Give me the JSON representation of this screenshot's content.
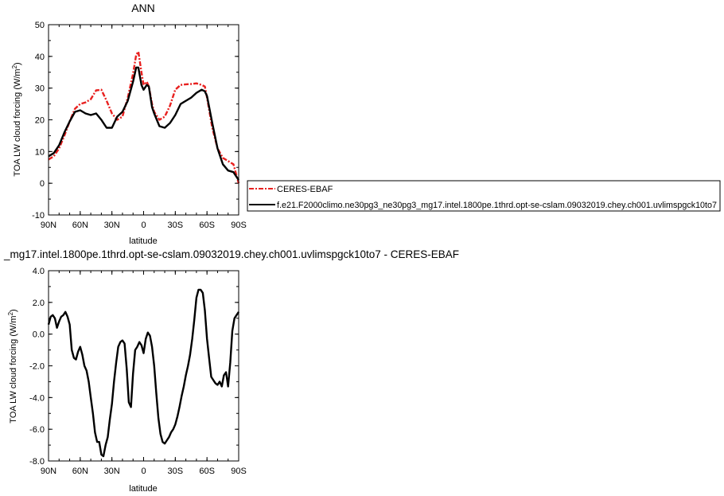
{
  "chart_data": [
    {
      "type": "line",
      "title": "ANN",
      "xlabel": "latitude",
      "ylabel_main": "TOA LW cloud forcing (W/m",
      "ylabel_sup": "2",
      "ylabel_close": ")",
      "xlim": [
        90,
        -90
      ],
      "ylim": [
        -10,
        50
      ],
      "x_ticks": [
        90,
        60,
        30,
        0,
        -30,
        -60,
        -90
      ],
      "x_tick_labels": [
        "90N",
        "60N",
        "30N",
        "0",
        "30S",
        "60S",
        "90S"
      ],
      "y_ticks": [
        -10,
        0,
        10,
        20,
        30,
        40,
        50
      ],
      "y_tick_labels": [
        "-10",
        "0",
        "10",
        "20",
        "30",
        "40",
        "50"
      ],
      "grid": false,
      "legend": "right",
      "series": [
        {
          "name": "CERES-EBAF",
          "color": "#e8201f",
          "dash": true,
          "x": [
            90,
            85,
            80,
            75,
            70,
            65,
            60,
            55,
            50,
            45,
            40,
            35,
            30,
            25,
            20,
            15,
            10,
            7,
            5,
            2,
            0,
            -3,
            -5,
            -8,
            -10,
            -15,
            -20,
            -25,
            -30,
            -35,
            -40,
            -45,
            -50,
            -55,
            -58,
            -60,
            -65,
            -70,
            -75,
            -80,
            -85,
            -90
          ],
          "y": [
            7.5,
            8.5,
            11,
            15,
            19.5,
            23.5,
            25,
            25.5,
            26.5,
            29.3,
            29.5,
            26,
            22,
            20,
            21,
            27,
            34.5,
            40.5,
            41.5,
            35,
            31,
            32,
            30.5,
            25,
            22.5,
            20,
            21,
            24.5,
            29.5,
            31,
            31.2,
            31.3,
            31.5,
            31,
            30.5,
            27,
            17.5,
            11,
            8,
            7,
            6,
            0
          ]
        },
        {
          "name": "f.e21.F2000climo.ne30pg3_ne30pg3_mg17.intel.1800pe.1thrd.opt-se-cslam.09032019.chey.ch001.uvlimspgck10to7",
          "color": "#000000",
          "dash": false,
          "x": [
            90,
            85,
            80,
            75,
            70,
            65,
            60,
            55,
            50,
            45,
            40,
            35,
            30,
            25,
            20,
            15,
            10,
            7,
            5,
            2,
            0,
            -3,
            -5,
            -8,
            -10,
            -15,
            -20,
            -25,
            -30,
            -35,
            -40,
            -45,
            -50,
            -55,
            -58,
            -60,
            -65,
            -70,
            -75,
            -80,
            -85,
            -90
          ],
          "y": [
            8.5,
            9.5,
            12,
            16,
            19.5,
            22.5,
            23,
            22,
            21.5,
            22,
            20,
            17.5,
            17.5,
            21,
            22.5,
            26,
            32,
            36.5,
            36.5,
            31,
            29.5,
            31,
            30.5,
            24,
            22,
            18,
            17.5,
            19,
            21.5,
            25,
            26,
            27,
            28.5,
            29.5,
            29,
            27.5,
            19,
            11,
            6,
            4,
            3.5,
            1
          ]
        }
      ]
    },
    {
      "type": "line",
      "title": "_mg17.intel.1800pe.1thrd.opt-se-cslam.09032019.chey.ch001.uvlimspgck10to7 - CERES-EBAF",
      "xlabel": "latitude",
      "ylabel_main": "TOA LW cloud forcing (W/m",
      "ylabel_sup": "2",
      "ylabel_close": ")",
      "xlim": [
        90,
        -90
      ],
      "ylim": [
        -8,
        4
      ],
      "x_ticks": [
        90,
        60,
        30,
        0,
        -30,
        -60,
        -90
      ],
      "x_tick_labels": [
        "90N",
        "60N",
        "30N",
        "0",
        "30S",
        "60S",
        "90S"
      ],
      "y_ticks": [
        -8,
        -6,
        -4,
        -2,
        0,
        2,
        4
      ],
      "y_tick_labels": [
        "-8.0",
        "-6.0",
        "-4.0",
        "-2.0",
        "0.0",
        "2.0",
        "4.0"
      ],
      "grid": false,
      "series": [
        {
          "color": "#000000",
          "dash": false,
          "x": [
            90,
            88,
            86,
            84,
            82,
            80,
            78,
            76,
            74,
            72,
            70,
            68,
            66,
            64,
            62,
            60,
            58,
            56,
            54,
            52,
            50,
            48,
            46,
            44,
            42,
            40,
            38,
            36,
            34,
            32,
            30,
            28,
            26,
            24,
            22,
            20,
            18,
            16,
            14,
            12,
            10,
            8,
            6,
            4,
            2,
            0,
            -2,
            -4,
            -6,
            -8,
            -10,
            -12,
            -14,
            -16,
            -18,
            -20,
            -22,
            -24,
            -26,
            -28,
            -30,
            -32,
            -34,
            -36,
            -38,
            -40,
            -42,
            -44,
            -46,
            -48,
            -50,
            -52,
            -54,
            -56,
            -58,
            -60,
            -62,
            -64,
            -66,
            -68,
            -70,
            -72,
            -74,
            -76,
            -78,
            -80,
            -82,
            -84,
            -86,
            -88,
            -90
          ],
          "y": [
            0.6,
            1.1,
            1.2,
            1.0,
            0.4,
            0.8,
            1.1,
            1.2,
            1.4,
            1.1,
            0.6,
            -1.0,
            -1.5,
            -1.6,
            -1.1,
            -0.8,
            -1.3,
            -2.0,
            -2.3,
            -3.0,
            -4.0,
            -5.0,
            -6.2,
            -6.8,
            -6.8,
            -7.6,
            -7.7,
            -7.0,
            -6.5,
            -5.4,
            -4.4,
            -3.0,
            -1.8,
            -0.8,
            -0.5,
            -0.4,
            -0.6,
            -2.2,
            -4.3,
            -4.6,
            -2.5,
            -1.0,
            -0.8,
            -0.5,
            -0.7,
            -1.2,
            -0.3,
            0.1,
            -0.1,
            -0.8,
            -2.0,
            -3.7,
            -5.3,
            -6.3,
            -6.8,
            -6.9,
            -6.7,
            -6.5,
            -6.2,
            -6.0,
            -5.7,
            -5.2,
            -4.6,
            -3.9,
            -3.3,
            -2.6,
            -2.0,
            -1.3,
            -0.3,
            0.9,
            2.3,
            2.8,
            2.8,
            2.6,
            1.5,
            -0.3,
            -1.5,
            -2.7,
            -2.9,
            -3.1,
            -3.2,
            -3.0,
            -3.3,
            -2.6,
            -2.4,
            -3.3,
            -1.8,
            0.2,
            1.0,
            1.2,
            1.4
          ]
        }
      ]
    }
  ]
}
